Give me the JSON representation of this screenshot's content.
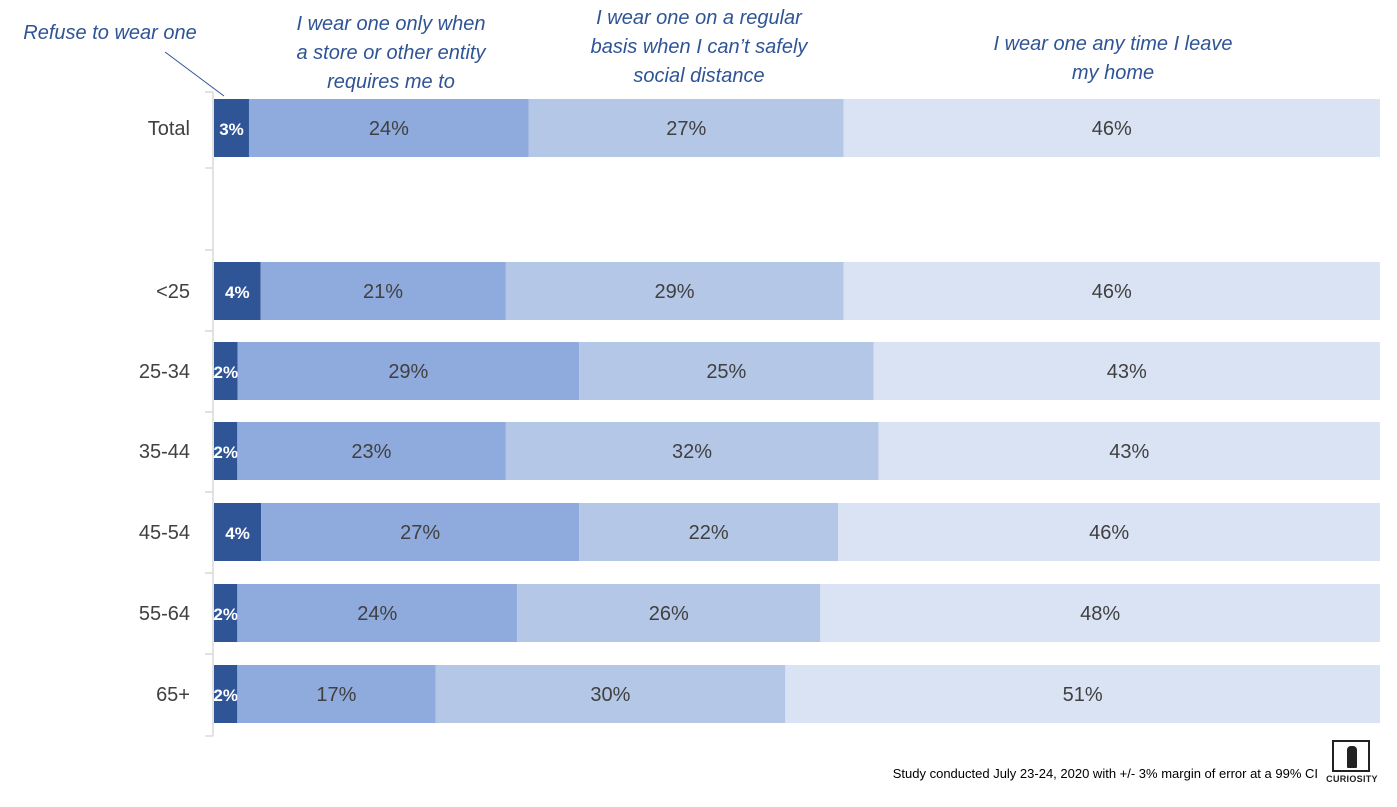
{
  "chart_data": {
    "type": "bar",
    "orientation": "horizontal",
    "stacked": true,
    "normalized": true,
    "categories": [
      "Total",
      "<25",
      "25-34",
      "35-44",
      "45-54",
      "55-64",
      "65+"
    ],
    "series": [
      {
        "name": "Refuse to wear one",
        "values": [
          3,
          4,
          2,
          2,
          4,
          2,
          2
        ],
        "color": "#2f5597"
      },
      {
        "name": "I wear one only when a store or other entity requires me to",
        "values": [
          24,
          21,
          29,
          23,
          27,
          24,
          17
        ],
        "color": "#8faadc"
      },
      {
        "name": "I wear one on a regular basis when I can’t safely social distance",
        "values": [
          27,
          29,
          25,
          32,
          22,
          26,
          30
        ],
        "color": "#b4c7e7"
      },
      {
        "name": "I wear one any time I leave my home",
        "values": [
          46,
          46,
          43,
          43,
          46,
          48,
          51
        ],
        "color": "#dae3f3"
      }
    ],
    "value_suffix": "%",
    "legend_position": "top",
    "grid": false
  },
  "legend_lines": [
    [
      "Refuse to wear one"
    ],
    [
      "I wear one only when",
      "a store or other entity",
      "requires me to"
    ],
    [
      "I wear one on a regular",
      "basis when I can’t safely",
      "social distance"
    ],
    [
      "I wear one any time I leave",
      "my home"
    ]
  ],
  "footnote": "Study conducted July 23-24, 2020 with +/- 3% margin of error at a 99% CI",
  "logo_text": "CURIOSITY",
  "colors": {
    "label_dark_segment": "#ffffff",
    "label_light_segment": "#404040",
    "legend_text": "#2f5496",
    "axis": "#d9d9d9"
  }
}
